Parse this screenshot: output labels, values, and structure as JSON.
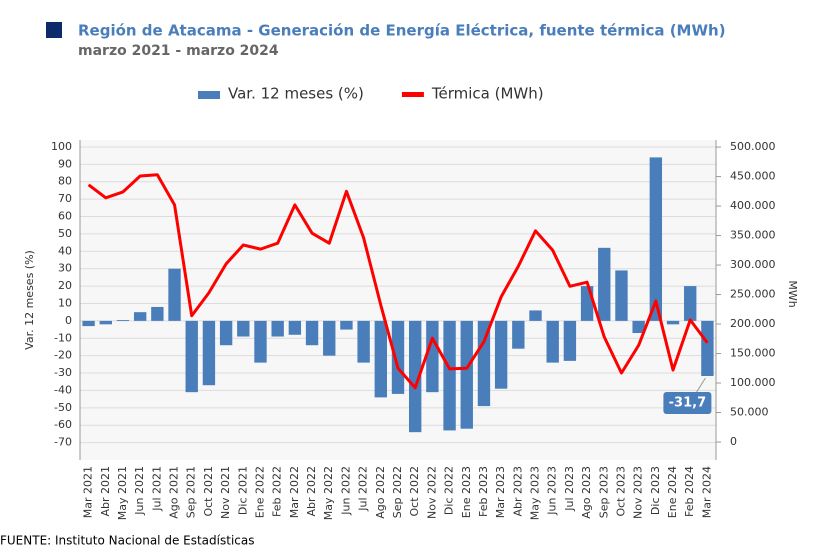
{
  "chart_data": {
    "type": "bar-line",
    "title": "Región de Atacama - Generación de Energía Eléctrica, fuente térmica (MWh)",
    "subtitle": "marzo 2021 - marzo 2024",
    "source": "FUENTE: Instituto Nacional de Estadísticas",
    "y_label": "Var. 12 meses (%)",
    "y2_label": "MWh",
    "categories": [
      "Mar 2021",
      "Abr 2021",
      "May 2021",
      "Jun 2021",
      "Jul 2021",
      "Ago 2021",
      "Sep 2021",
      "Oct 2021",
      "Nov 2021",
      "Dic 2021",
      "Ene 2022",
      "Feb 2022",
      "Mar 2022",
      "Abr 2022",
      "May 2022",
      "Jun 2022",
      "Jul 2022",
      "Ago 2022",
      "Sep 2022",
      "Oct 2022",
      "Nov 2022",
      "Dic 2022",
      "Ene 2023",
      "Feb 2023",
      "Mar 2023",
      "Abr 2023",
      "May 2023",
      "Jun 2023",
      "Jul 2023",
      "Ago 2023",
      "Sep 2023",
      "Oct 2023",
      "Nov 2023",
      "Dic 2023",
      "Ene 2024",
      "Feb 2024",
      "Mar 2024"
    ],
    "series": [
      {
        "name": "Var. 12 meses (%)",
        "type": "bar",
        "axis": "y",
        "color": "#4a7ebb",
        "values": [
          -3,
          -2,
          0.5,
          5,
          8,
          30,
          -41,
          -37,
          -14,
          -9,
          -24,
          -9,
          -8,
          -14,
          -20,
          -5,
          -24,
          -44,
          -42,
          -64,
          -41,
          -63,
          -62,
          -49,
          -39,
          -16,
          6,
          -24,
          -23,
          20,
          42,
          29,
          -7,
          94,
          -2,
          20,
          -31.7
        ],
        "value_labels": [
          null,
          null,
          null,
          null,
          null,
          null,
          null,
          null,
          null,
          null,
          null,
          null,
          null,
          null,
          null,
          null,
          null,
          null,
          null,
          null,
          null,
          null,
          null,
          null,
          null,
          null,
          null,
          null,
          null,
          null,
          null,
          null,
          null,
          null,
          null,
          null,
          "-31,7"
        ]
      },
      {
        "name": "Térmica (MWh)",
        "type": "line",
        "axis": "y2",
        "color": "#ff0000",
        "values": [
          436000,
          414000,
          424000,
          451000,
          453000,
          402000,
          214000,
          253000,
          302000,
          334000,
          327000,
          337000,
          402000,
          354000,
          337000,
          425000,
          346000,
          232000,
          125000,
          92000,
          176000,
          124000,
          125000,
          170000,
          246000,
          298000,
          358000,
          325000,
          264000,
          271000,
          178000,
          117000,
          164000,
          239000,
          122000,
          207000,
          168000
        ]
      }
    ],
    "ylim": [
      -80,
      104
    ],
    "yticks": [
      -70,
      -60,
      -50,
      -40,
      -30,
      -20,
      -10,
      0,
      10,
      20,
      30,
      40,
      50,
      60,
      70,
      80,
      90,
      100
    ],
    "y2lim": [
      -30500,
      512000
    ],
    "y2ticks": [
      0,
      {
        "value": 50000,
        "label": "50.000"
      },
      {
        "value": 100000,
        "label": "100.000"
      },
      {
        "value": 150000,
        "label": "150.000"
      },
      {
        "value": 200000,
        "label": "200.000"
      },
      {
        "value": 250000,
        "label": "250.000"
      },
      {
        "value": 300000,
        "label": "300.000"
      },
      {
        "value": 350000,
        "label": "350.000"
      },
      {
        "value": 400000,
        "label": "400.000"
      },
      {
        "value": 450000,
        "label": "450.000"
      },
      {
        "value": 500000,
        "label": "500.000"
      }
    ],
    "grid": true
  }
}
